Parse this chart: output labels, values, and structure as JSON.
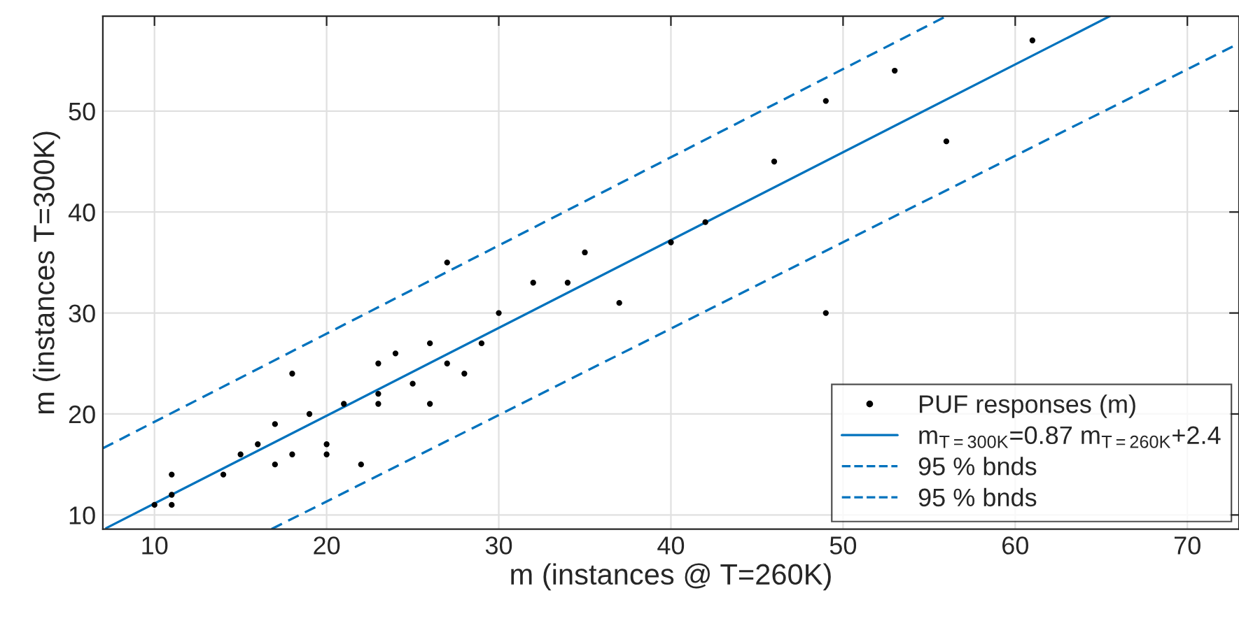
{
  "chart_data": {
    "type": "scatter",
    "xlabel": "m (instances @ T=260K)",
    "ylabel": "m (instances T=300K)",
    "xlim": [
      7,
      73
    ],
    "ylim": [
      8.6,
      59.4
    ],
    "xticks": [
      10,
      20,
      30,
      40,
      50,
      60,
      70
    ],
    "yticks": [
      10,
      20,
      30,
      40,
      50
    ],
    "grid": true,
    "legend": "bottom right",
    "series": [
      {
        "name": "PUF responses (m)",
        "color": "#000000",
        "marker": "circle",
        "x": [
          10,
          11,
          11,
          11,
          14,
          15,
          16,
          17,
          17,
          18,
          18,
          19,
          20,
          20,
          21,
          22,
          23,
          23,
          23,
          24,
          25,
          26,
          26,
          27,
          27,
          28,
          29,
          30,
          32,
          34,
          35,
          37,
          40,
          42,
          46,
          49,
          49,
          53,
          56,
          61
        ],
        "values": [
          11,
          14,
          12,
          11,
          14,
          16,
          17,
          19,
          15,
          24,
          16,
          20,
          17,
          16,
          21,
          15,
          25,
          22,
          21,
          26,
          23,
          27,
          21,
          35,
          25,
          24,
          27,
          30,
          33,
          33,
          36,
          31,
          37,
          39,
          45,
          51,
          30,
          54,
          47,
          57
        ]
      },
      {
        "name": "m$_{T=300K}$=0.87 m$_{T=260K}$+2.4",
        "type": "line",
        "color": "#0072bd",
        "line_style": "solid",
        "x": [
          7.2,
          65.5
        ],
        "values": [
          8.7,
          59.4
        ]
      },
      {
        "name": "95 % bnds",
        "type": "line",
        "color": "#0072bd",
        "line_style": "dashed",
        "x": [
          7,
          56
        ],
        "values": [
          16.6,
          59.4
        ]
      },
      {
        "name": "95 % bnds",
        "type": "line",
        "color": "#0072bd",
        "line_style": "dashed",
        "x": [
          16.8,
          73
        ],
        "values": [
          8.6,
          56.7
        ]
      }
    ]
  }
}
